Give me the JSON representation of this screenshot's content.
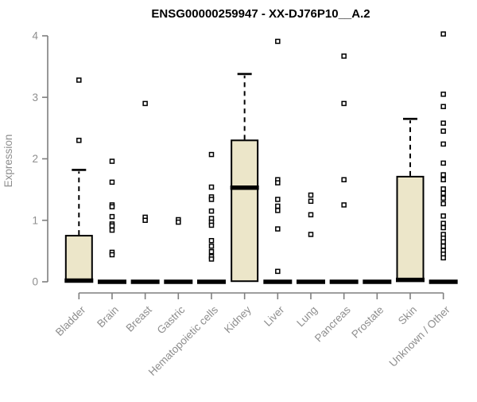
{
  "title": "ENSG00000259947 - XX-DJ76P10__A.2",
  "chart_data": {
    "type": "box",
    "title": "ENSG00000259947 - XX-DJ76P10__A.2",
    "ylabel": "Expression",
    "xlabel": "",
    "ylim": [
      0,
      4
    ],
    "yticks": [
      0,
      1,
      2,
      3,
      4
    ],
    "grid": false,
    "legend": null,
    "colors": {
      "box_fill": "#ece6c9",
      "box_border": "#000000",
      "whisker": "#000000",
      "outlier": "#000000",
      "axis": "#7f7f7f",
      "labels": "#8e8e8e",
      "title": "#000000"
    },
    "categories": [
      "Bladder",
      "Brain",
      "Breast",
      "Gastric",
      "Hematopoietic cells",
      "Kidney",
      "Liver",
      "Lung",
      "Pancreas",
      "Prostate",
      "Skin",
      "Unknown / Other"
    ],
    "series": [
      {
        "category": "Bladder",
        "q1": 0,
        "median": 0.02,
        "q3": 0.75,
        "whisker_low": 0,
        "whisker_high": 1.82,
        "outliers": [
          3.28,
          2.3
        ]
      },
      {
        "category": "Brain",
        "q1": 0,
        "median": 0,
        "q3": 0,
        "whisker_low": 0,
        "whisker_high": 0,
        "outliers": [
          1.96,
          1.62,
          1.25,
          1.22,
          1.06,
          0.94,
          0.91,
          0.84,
          0.48,
          0.44
        ]
      },
      {
        "category": "Breast",
        "q1": 0,
        "median": 0,
        "q3": 0,
        "whisker_low": 0,
        "whisker_high": 0,
        "outliers": [
          2.9,
          1.05,
          1.0
        ]
      },
      {
        "category": "Gastric",
        "q1": 0,
        "median": 0,
        "q3": 0,
        "whisker_low": 0,
        "whisker_high": 0,
        "outliers": [
          1.01,
          0.97
        ]
      },
      {
        "category": "Hematopoietic cells",
        "q1": 0,
        "median": 0,
        "q3": 0,
        "whisker_low": 0,
        "whisker_high": 0,
        "outliers": [
          2.07,
          1.54,
          1.38,
          1.34,
          1.15,
          1.03,
          0.97,
          0.92,
          0.67,
          0.58,
          0.49,
          0.41,
          0.37
        ]
      },
      {
        "category": "Kidney",
        "q1": 0.01,
        "median": 1.53,
        "q3": 2.3,
        "whisker_low": 0.01,
        "whisker_high": 3.38,
        "outliers": []
      },
      {
        "category": "Liver",
        "q1": 0,
        "median": 0,
        "q3": 0,
        "whisker_low": 0,
        "whisker_high": 0,
        "outliers": [
          3.91,
          1.66,
          1.61,
          1.34,
          1.23,
          1.16,
          0.86,
          0.17
        ]
      },
      {
        "category": "Lung",
        "q1": 0,
        "median": 0,
        "q3": 0,
        "whisker_low": 0,
        "whisker_high": 0,
        "outliers": [
          1.41,
          1.31,
          1.09,
          0.77
        ]
      },
      {
        "category": "Pancreas",
        "q1": 0,
        "median": 0,
        "q3": 0,
        "whisker_low": 0,
        "whisker_high": 0,
        "outliers": [
          3.67,
          2.9,
          1.66,
          1.25
        ]
      },
      {
        "category": "Prostate",
        "q1": 0,
        "median": 0,
        "q3": 0,
        "whisker_low": 0,
        "whisker_high": 0,
        "outliers": []
      },
      {
        "category": "Skin",
        "q1": 0.02,
        "median": 0.03,
        "q3": 1.71,
        "whisker_low": 0.02,
        "whisker_high": 2.65,
        "outliers": []
      },
      {
        "category": "Unknown / Other",
        "q1": 0,
        "median": 0,
        "q3": 0,
        "whisker_low": 0,
        "whisker_high": 0,
        "outliers": [
          4.03,
          3.05,
          2.85,
          2.58,
          2.45,
          2.24,
          1.93,
          1.74,
          1.66,
          1.51,
          1.44,
          1.36,
          1.27,
          1.07,
          0.95,
          0.88,
          0.77,
          0.71,
          0.65,
          0.58,
          0.51,
          0.45,
          0.39
        ]
      }
    ]
  }
}
